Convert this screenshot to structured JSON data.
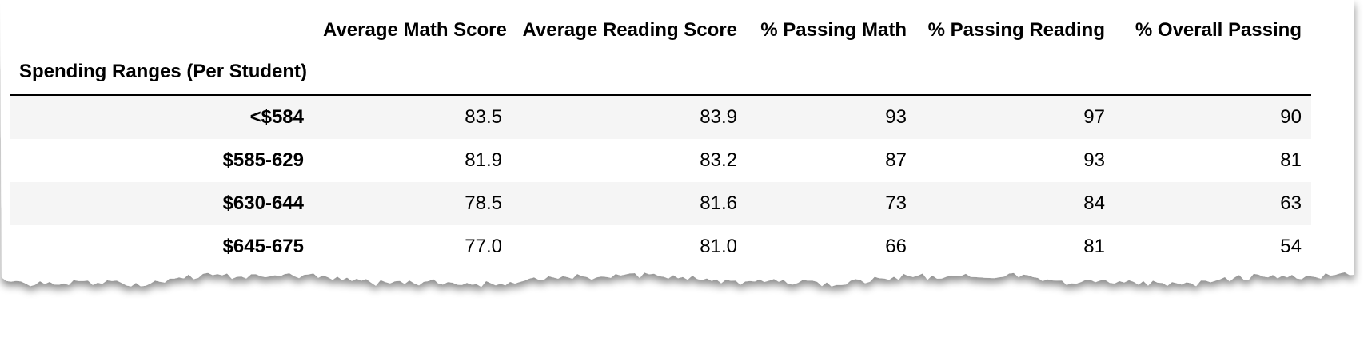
{
  "table": {
    "index_name": "Spending Ranges (Per Student)",
    "columns": [
      "Average Math Score",
      "Average Reading Score",
      "% Passing Math",
      "% Passing Reading",
      "% Overall Passing"
    ],
    "rows": [
      {
        "index": "<$584",
        "values": [
          "83.5",
          "83.9",
          "93",
          "97",
          "90"
        ]
      },
      {
        "index": "$585-629",
        "values": [
          "81.9",
          "83.2",
          "87",
          "93",
          "81"
        ]
      },
      {
        "index": "$630-644",
        "values": [
          "78.5",
          "81.6",
          "73",
          "84",
          "63"
        ]
      },
      {
        "index": "$645-675",
        "values": [
          "77.0",
          "81.0",
          "66",
          "81",
          "54"
        ]
      }
    ]
  }
}
